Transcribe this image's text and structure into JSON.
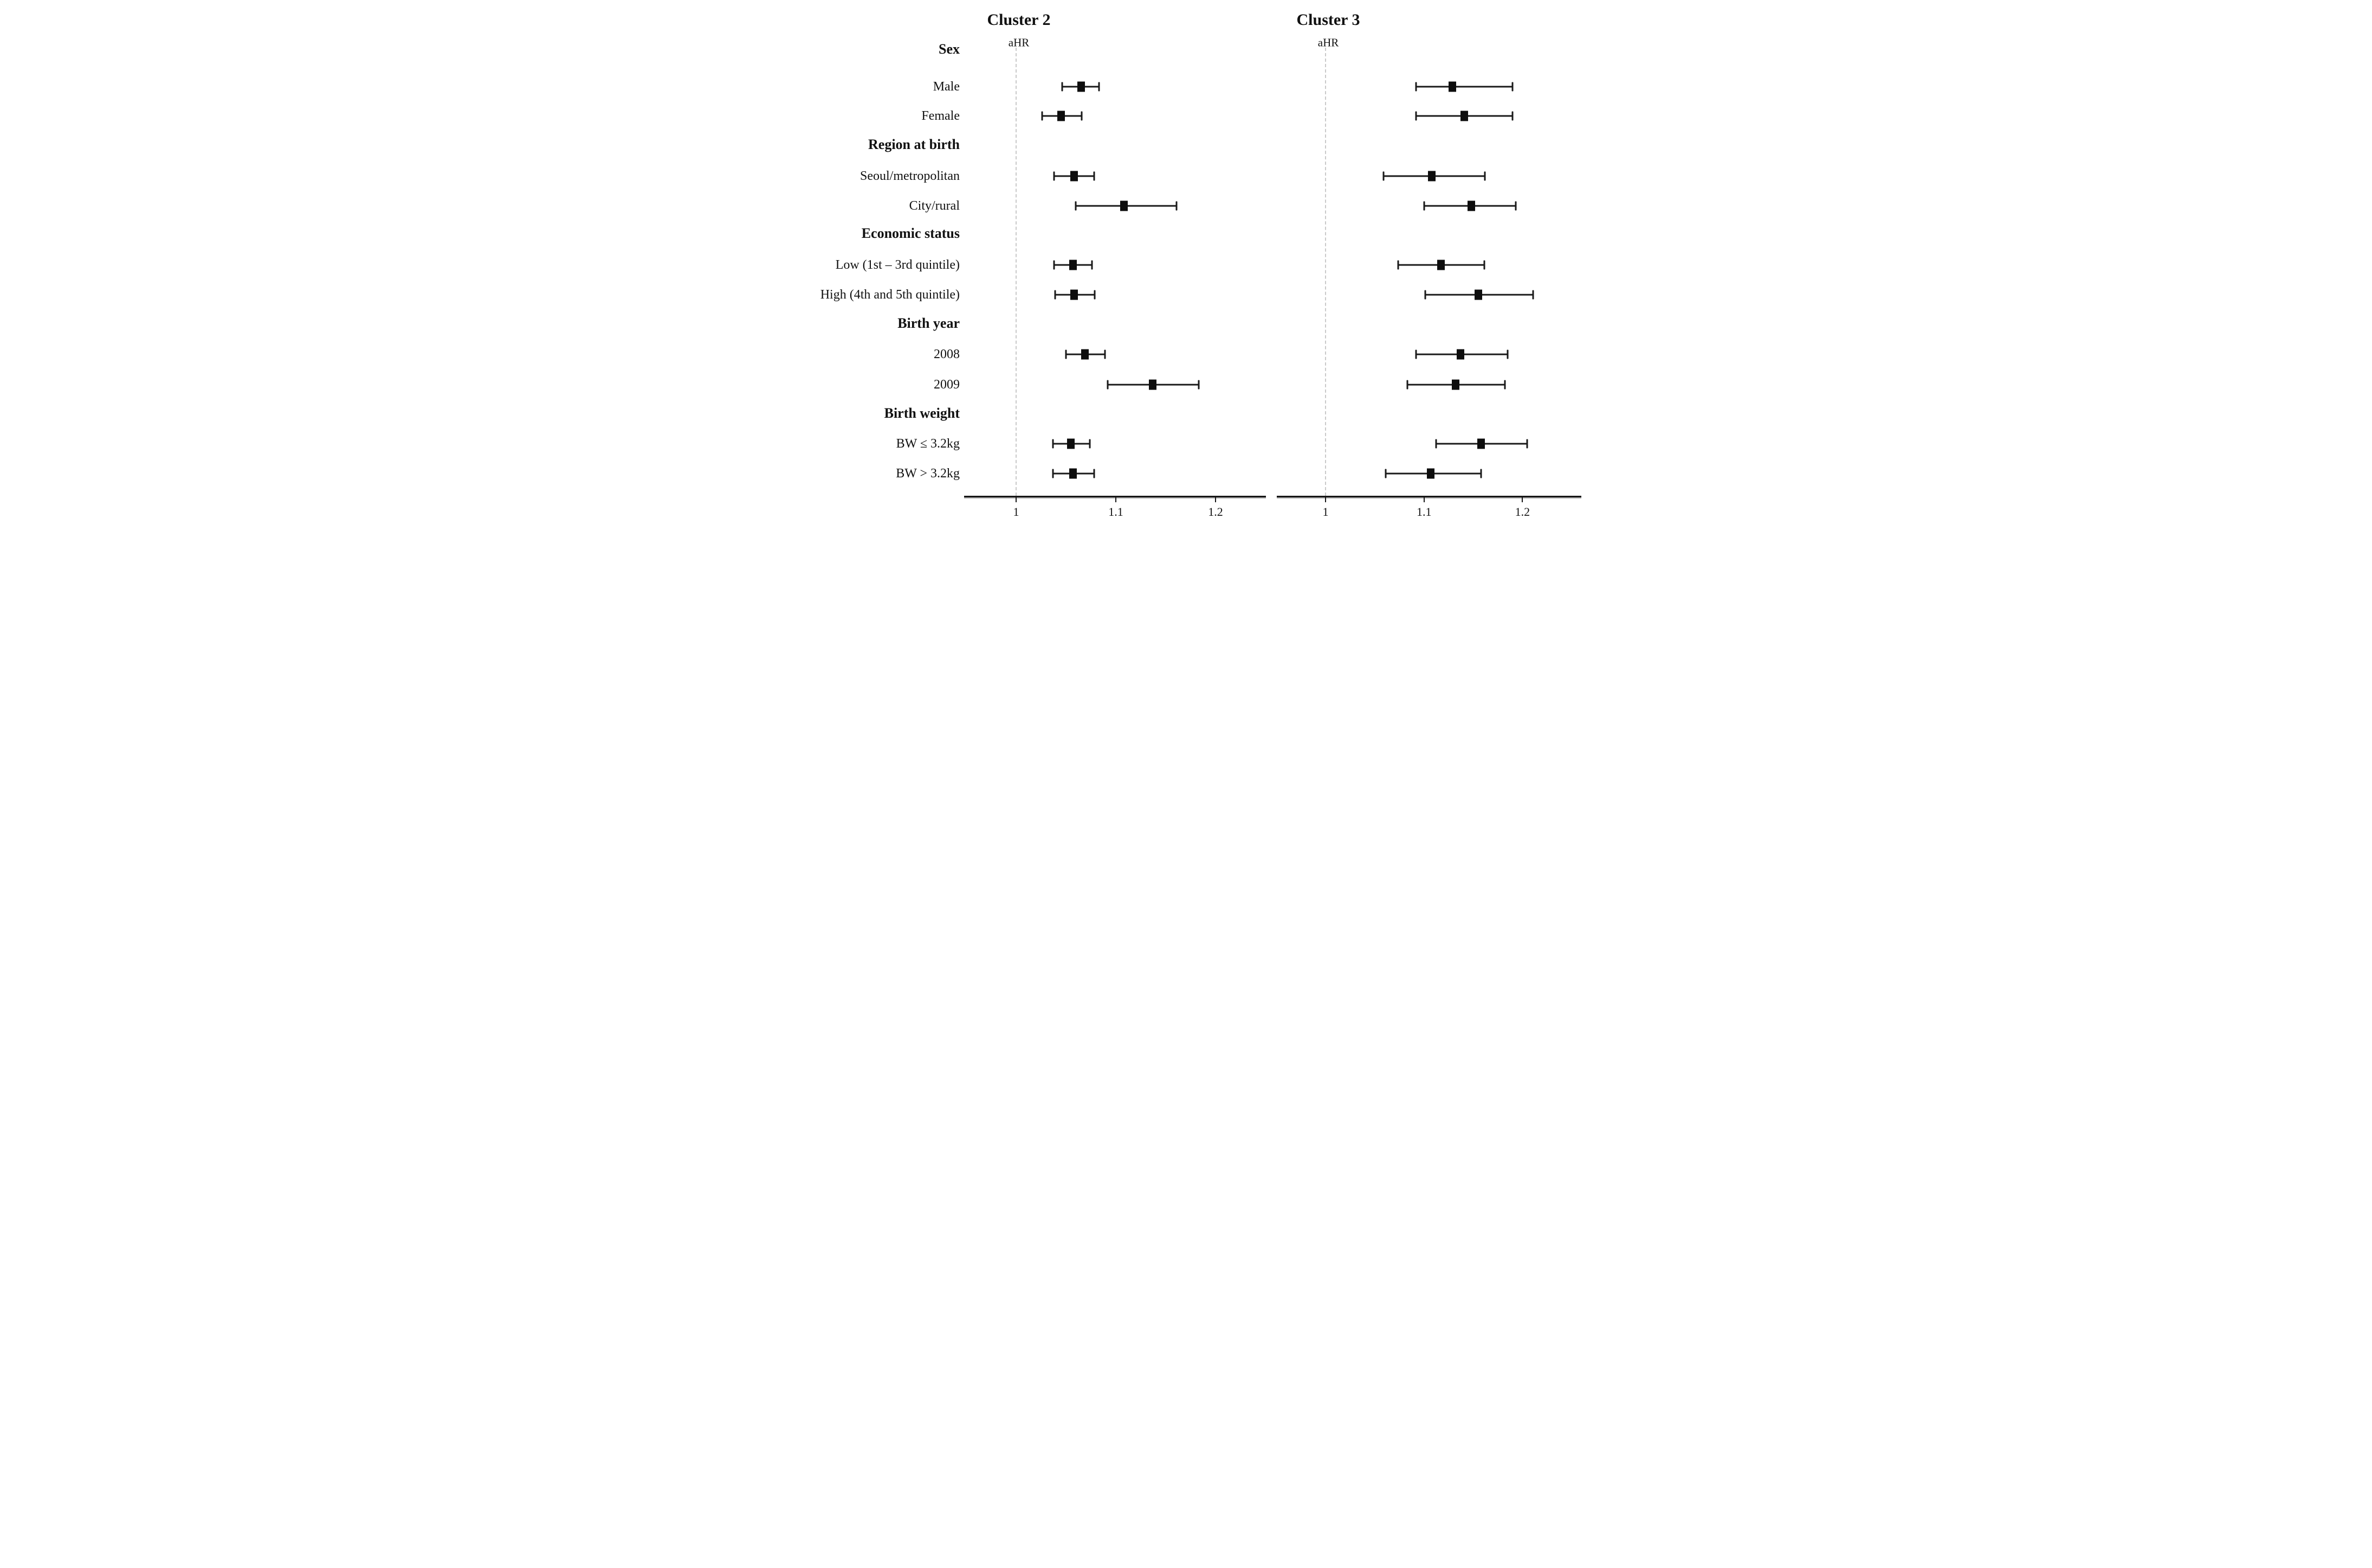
{
  "figure": {
    "background_color": "#ffffff",
    "text_color": "#111111",
    "marker_color": "#0d0d0d",
    "reference_line_color": "#c9c9c9"
  },
  "chart_data": {
    "type": "scatter",
    "subtype": "forest_plot",
    "grid": false,
    "marker": "filled black square",
    "error_bars": "horizontal 95% CI with end caps",
    "row_groups": [
      {
        "header": "Sex",
        "items": [
          "Male",
          "Female"
        ]
      },
      {
        "header": "Region at birth",
        "items": [
          "Seoul/metropolitan",
          "City/rural"
        ]
      },
      {
        "header": "Economic status",
        "items": [
          "Low (1st – 3rd quintile)",
          "High (4th and 5th quintile)"
        ]
      },
      {
        "header": "Birth year",
        "items": [
          "2008",
          "2009"
        ]
      },
      {
        "header": "Birth weight",
        "items": [
          "BW ≤ 3.2kg",
          "BW > 3.2kg"
        ]
      }
    ],
    "panels": [
      {
        "title": "Cluster 2",
        "axis_label": "aHR",
        "x_ticks": [
          "1",
          "1.1",
          "1.2"
        ],
        "x_tick_values": [
          1.0,
          1.1,
          1.2
        ],
        "xlim": [
          0.95,
          1.25
        ],
        "reference_line": 1.0,
        "estimates": [
          {
            "label": "Male",
            "aHR": 1.065,
            "ci_low": 1.046,
            "ci_high": 1.083
          },
          {
            "label": "Female",
            "aHR": 1.045,
            "ci_low": 1.026,
            "ci_high": 1.066
          },
          {
            "label": "Seoul/metropolitan",
            "aHR": 1.058,
            "ci_low": 1.038,
            "ci_high": 1.078
          },
          {
            "label": "City/rural",
            "aHR": 1.108,
            "ci_low": 1.06,
            "ci_high": 1.161
          },
          {
            "label": "Low (1st – 3rd quintile)",
            "aHR": 1.057,
            "ci_low": 1.038,
            "ci_high": 1.076
          },
          {
            "label": "High (4th and 5th quintile)",
            "aHR": 1.058,
            "ci_low": 1.039,
            "ci_high": 1.079
          },
          {
            "label": "2008",
            "aHR": 1.069,
            "ci_low": 1.05,
            "ci_high": 1.089
          },
          {
            "label": "2009",
            "aHR": 1.137,
            "ci_low": 1.092,
            "ci_high": 1.183
          },
          {
            "label": "BW ≤ 3.2kg",
            "aHR": 1.055,
            "ci_low": 1.037,
            "ci_high": 1.074
          },
          {
            "label": "BW > 3.2kg",
            "aHR": 1.057,
            "ci_low": 1.037,
            "ci_high": 1.078
          }
        ]
      },
      {
        "title": "Cluster 3",
        "axis_label": "aHR",
        "x_ticks": [
          "1",
          "1.1",
          "1.2"
        ],
        "x_tick_values": [
          1.0,
          1.1,
          1.2
        ],
        "xlim": [
          0.95,
          1.26
        ],
        "reference_line": 1.0,
        "estimates": [
          {
            "label": "Male",
            "aHR": 1.129,
            "ci_low": 1.092,
            "ci_high": 1.19
          },
          {
            "label": "Female",
            "aHR": 1.141,
            "ci_low": 1.092,
            "ci_high": 1.19
          },
          {
            "label": "Seoul/metropolitan",
            "aHR": 1.108,
            "ci_low": 1.059,
            "ci_high": 1.162
          },
          {
            "label": "City/rural",
            "aHR": 1.148,
            "ci_low": 1.1,
            "ci_high": 1.193
          },
          {
            "label": "Low (1st – 3rd quintile)",
            "aHR": 1.117,
            "ci_low": 1.074,
            "ci_high": 1.161
          },
          {
            "label": "High (4th and 5th quintile)",
            "aHR": 1.155,
            "ci_low": 1.101,
            "ci_high": 1.211
          },
          {
            "label": "2008",
            "aHR": 1.137,
            "ci_low": 1.092,
            "ci_high": 1.185
          },
          {
            "label": "2009",
            "aHR": 1.132,
            "ci_low": 1.083,
            "ci_high": 1.182
          },
          {
            "label": "BW ≤ 3.2kg",
            "aHR": 1.158,
            "ci_low": 1.112,
            "ci_high": 1.205
          },
          {
            "label": "BW > 3.2kg",
            "aHR": 1.107,
            "ci_low": 1.061,
            "ci_high": 1.158
          }
        ]
      }
    ]
  }
}
